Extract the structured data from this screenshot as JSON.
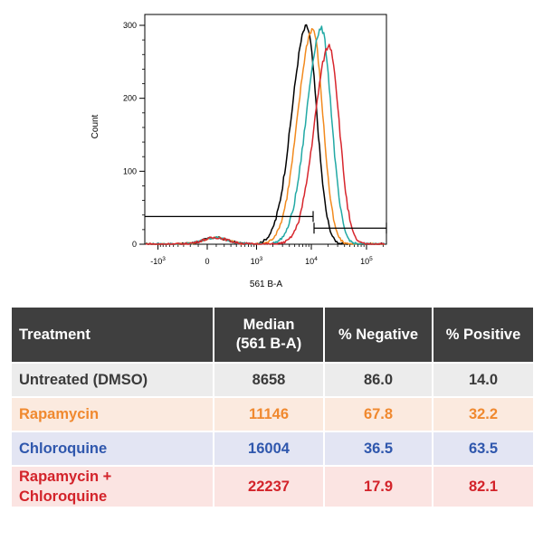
{
  "chart_data": {
    "type": "line",
    "title": "",
    "xlabel": "561 B-A",
    "ylabel": "Count",
    "x_scale": "biexponential",
    "x_ticks": [
      {
        "value": -1000,
        "base": "-10",
        "exp": "3"
      },
      {
        "value": 0,
        "base": "0",
        "exp": ""
      },
      {
        "value": 1000,
        "base": "10",
        "exp": "3"
      },
      {
        "value": 10000,
        "base": "10",
        "exp": "4"
      },
      {
        "value": 100000,
        "base": "10",
        "exp": "5"
      }
    ],
    "y_ticks": [
      "0",
      "100",
      "200",
      "300"
    ],
    "ylim": [
      0,
      300
    ],
    "gate": {
      "threshold": 10000,
      "negative_level": 38,
      "positive_level": 22
    },
    "series": [
      {
        "name": "Untreated (DMSO)",
        "color": "#000000",
        "median": 8658,
        "peak": 298
      },
      {
        "name": "Rapamycin",
        "color": "#f28a1e",
        "median": 11146,
        "peak": 295
      },
      {
        "name": "Chloroquine",
        "color": "#22a9a5",
        "median": 16004,
        "peak": 295
      },
      {
        "name": "Rapamycin + Chloroquine",
        "color": "#d7262d",
        "median": 22237,
        "peak": 272
      }
    ]
  },
  "table": {
    "headers": {
      "treatment": "Treatment",
      "median_1": "Median",
      "median_2": "(561 B-A)",
      "negative": "% Negative",
      "positive": "% Positive"
    },
    "rows": [
      {
        "treatment": "Untreated (DMSO)",
        "median": "8658",
        "negative": "86.0",
        "positive": "14.0"
      },
      {
        "treatment": "Rapamycin",
        "median": "11146",
        "negative": "67.8",
        "positive": "32.2"
      },
      {
        "treatment": "Chloroquine",
        "median": "16004",
        "negative": "36.5",
        "positive": "63.5"
      },
      {
        "treatment_1": "Rapamycin +",
        "treatment_2": "Chloroquine",
        "median": "22237",
        "negative": "17.9",
        "positive": "82.1"
      }
    ]
  }
}
